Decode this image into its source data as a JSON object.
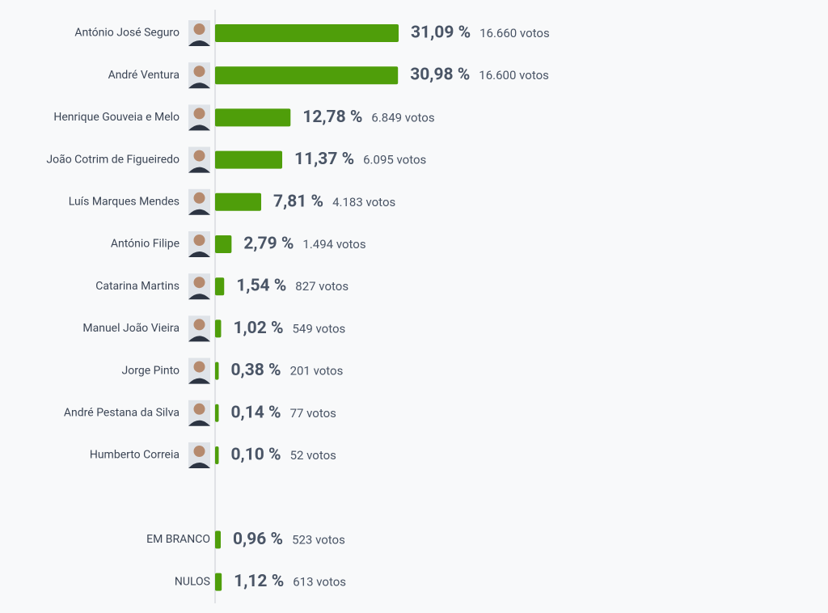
{
  "chart_data": [
    {
      "type": "bar",
      "color": "#4f9e0a",
      "categories": [
        "António José Seguro",
        "André Ventura",
        "Henrique Gouveia e Melo",
        "João Cotrim de Figueiredo",
        "Luís Marques Mendes",
        "António Filipe",
        "Catarina Martins",
        "Manuel João Vieira",
        "Jorge Pinto",
        "André Pestana da Silva",
        "Humberto Correia"
      ],
      "values": [
        31.09,
        30.98,
        12.78,
        11.37,
        7.81,
        2.79,
        1.54,
        1.02,
        0.38,
        0.14,
        0.1
      ],
      "value_labels": [
        "31,09 %",
        "30,98 %",
        "12,78 %",
        "11,37 %",
        "7,81 %",
        "2,79 %",
        "1,54 %",
        "1,02 %",
        "0,38 %",
        "0,14 %",
        "0,10 %"
      ],
      "votes": [
        16660,
        16600,
        6849,
        6095,
        4183,
        1494,
        827,
        549,
        201,
        77,
        52
      ],
      "vote_labels": [
        "16.660 votos",
        "16.600 votos",
        "6.849 votos",
        "6.095 votos",
        "4.183 votos",
        "1.494 votos",
        "827 votos",
        "549 votos",
        "201 votos",
        "77 votos",
        "52 votos"
      ]
    },
    {
      "type": "bar",
      "color": "#4f9e0a",
      "categories": [
        "EM BRANCO",
        "NULOS"
      ],
      "values": [
        0.96,
        1.12
      ],
      "value_labels": [
        "0,96 %",
        "1,12 %"
      ],
      "votes": [
        523,
        613
      ],
      "vote_labels": [
        "523 votos",
        "613 votos"
      ]
    }
  ]
}
